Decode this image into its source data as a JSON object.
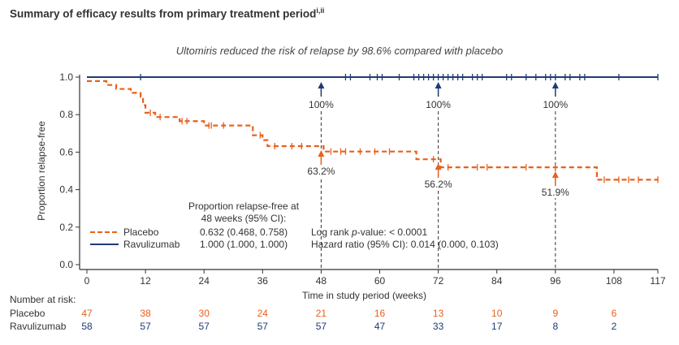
{
  "header": {
    "title": "Summary of efficacy results from primary treatment period",
    "title_superscript": "i,ii",
    "subtitle": "Ultomiris reduced the risk of relapse by 98.6% compared with placebo"
  },
  "colors": {
    "placebo": "#e8601c",
    "ravulizumab": "#1f3b73",
    "axis": "#333333",
    "annotation_line": "#333333"
  },
  "chart_data": {
    "type": "line",
    "subtype": "kaplan-meier",
    "title": "Summary of efficacy results from primary treatment period",
    "subtitle": "Ultomiris reduced the risk of relapse by 98.6% compared with placebo",
    "xlabel": "Time in study period (weeks)",
    "ylabel": "Proportion relapse-free",
    "xlim": [
      0,
      117
    ],
    "ylim": [
      0,
      1.0
    ],
    "x_ticks": [
      0,
      12,
      24,
      36,
      48,
      60,
      72,
      84,
      96,
      108,
      117
    ],
    "y_ticks": [
      0.0,
      0.2,
      0.4,
      0.6,
      0.8,
      1.0
    ],
    "y_tick_labels": [
      "0.0",
      "0.2",
      "0.4",
      "0.6",
      "0.8",
      "1.0"
    ],
    "grid": false,
    "series": [
      {
        "name": "Placebo",
        "style": "dashed",
        "steps": [
          [
            0,
            0.979
          ],
          [
            3,
            0.979
          ],
          [
            4,
            0.958
          ],
          [
            6,
            0.937
          ],
          [
            9,
            0.916
          ],
          [
            11,
            0.895
          ],
          [
            11.5,
            0.85
          ],
          [
            12,
            0.81
          ],
          [
            14,
            0.787
          ],
          [
            18,
            0.787
          ],
          [
            19,
            0.765
          ],
          [
            23,
            0.765
          ],
          [
            24,
            0.742
          ],
          [
            33,
            0.742
          ],
          [
            34,
            0.69
          ],
          [
            36,
            0.664
          ],
          [
            37,
            0.632
          ],
          [
            48,
            0.632
          ],
          [
            48.5,
            0.603
          ],
          [
            67,
            0.603
          ],
          [
            67.5,
            0.562
          ],
          [
            72,
            0.562
          ],
          [
            72.5,
            0.519
          ],
          [
            104,
            0.519
          ],
          [
            104.5,
            0.453
          ],
          [
            117,
            0.453
          ]
        ],
        "censored": [
          13,
          15,
          19.5,
          20.5,
          25,
          25.5,
          28,
          35.5,
          38.5,
          42,
          44,
          50,
          52,
          53,
          56,
          59,
          62,
          71,
          74,
          80,
          82,
          90,
          96,
          106,
          109,
          111,
          113,
          117
        ]
      },
      {
        "name": "Ravulizumab",
        "style": "solid",
        "steps": [
          [
            0,
            1.0
          ],
          [
            117,
            1.0
          ]
        ],
        "censored": [
          11,
          53,
          54,
          58,
          59.5,
          60.5,
          64,
          67,
          68,
          69,
          70,
          71,
          72,
          73,
          74,
          75,
          76,
          77,
          79,
          80,
          81,
          86,
          87,
          90,
          92,
          94,
          95,
          96,
          98,
          99,
          101,
          102,
          109,
          117
        ]
      }
    ],
    "annotations": [
      {
        "x": 48,
        "series": "Ravulizumab",
        "value": 1.0,
        "label": "100%"
      },
      {
        "x": 72,
        "series": "Ravulizumab",
        "value": 1.0,
        "label": "100%"
      },
      {
        "x": 96,
        "series": "Ravulizumab",
        "value": 1.0,
        "label": "100%"
      },
      {
        "x": 48,
        "series": "Placebo",
        "value": 0.632,
        "label": "63.2%"
      },
      {
        "x": 72,
        "series": "Placebo",
        "value": 0.562,
        "label": "56.2%"
      },
      {
        "x": 96,
        "series": "Placebo",
        "value": 0.519,
        "label": "51.9%"
      }
    ],
    "legend": {
      "placement": "bottom-left",
      "header_line1": "Proportion relapse-free at",
      "header_line2": "48 weeks (95% CI):",
      "entries": [
        {
          "name": "Placebo",
          "value": "0.632 (0.468, 0.758)"
        },
        {
          "name": "Ravulizumab",
          "value": "1.000 (1.000, 1.000)"
        }
      ]
    },
    "stats": {
      "logrank_prefix": "Log rank ",
      "logrank_p": "p",
      "logrank_suffix": "-value: < 0.0001",
      "hazard_ratio": "Hazard ratio (95% CI): 0.014 (0.000, 0.103)"
    },
    "risk_table": {
      "title": "Number at risk:",
      "times": [
        0,
        12,
        24,
        36,
        48,
        60,
        72,
        84,
        96,
        108
      ],
      "rows": [
        {
          "name": "Placebo",
          "values": [
            47,
            38,
            30,
            24,
            21,
            16,
            13,
            10,
            9,
            6
          ]
        },
        {
          "name": "Ravulizumab",
          "values": [
            58,
            57,
            57,
            57,
            57,
            47,
            33,
            17,
            8,
            2
          ]
        }
      ]
    }
  }
}
